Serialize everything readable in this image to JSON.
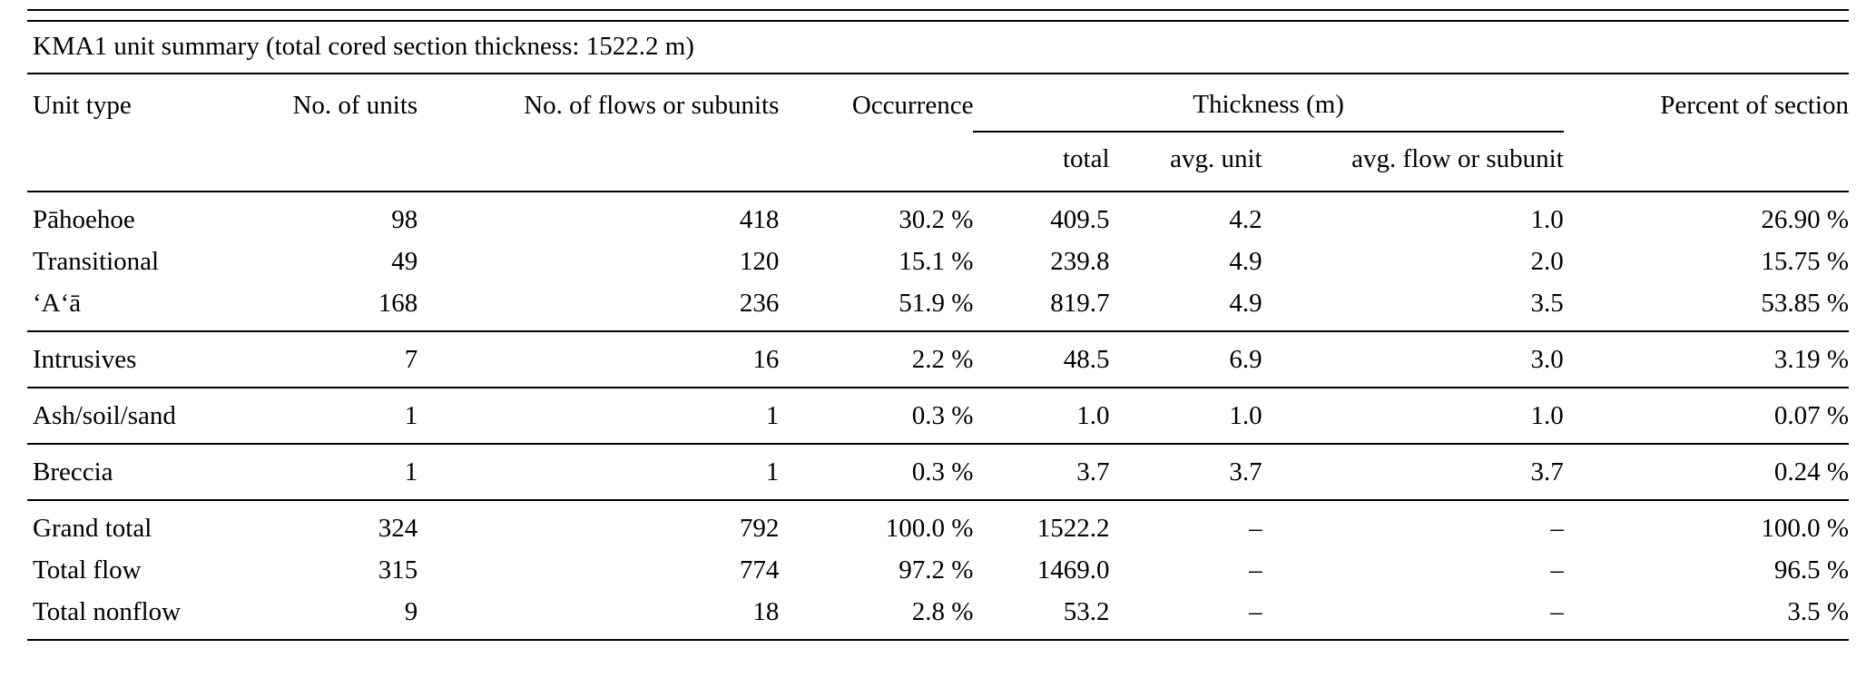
{
  "title": "KMA1 unit summary (total cored section thickness: 1522.2 m)",
  "table": {
    "columns": {
      "unit_type": "Unit type",
      "no_units": "No. of units",
      "no_flows": "No. of flows or subunits",
      "occurrence": "Occurrence",
      "thickness": "Thickness (m)",
      "percent": "Percent of section"
    },
    "thickness_subcolumns": {
      "total": "total",
      "avg_unit": "avg. unit",
      "avg_flow": "avg. flow or subunit"
    },
    "groups": [
      [
        [
          "Pāhoehoe",
          "98",
          "418",
          "30.2 %",
          "409.5",
          "4.2",
          "1.0",
          "26.90 %"
        ],
        [
          "Transitional",
          "49",
          "120",
          "15.1 %",
          "239.8",
          "4.9",
          "2.0",
          "15.75 %"
        ],
        [
          "ʻAʻā",
          "168",
          "236",
          "51.9 %",
          "819.7",
          "4.9",
          "3.5",
          "53.85 %"
        ]
      ],
      [
        [
          "Intrusives",
          "7",
          "16",
          "2.2 %",
          "48.5",
          "6.9",
          "3.0",
          "3.19 %"
        ]
      ],
      [
        [
          "Ash/soil/sand",
          "1",
          "1",
          "0.3 %",
          "1.0",
          "1.0",
          "1.0",
          "0.07 %"
        ]
      ],
      [
        [
          "Breccia",
          "1",
          "1",
          "0.3 %",
          "3.7",
          "3.7",
          "3.7",
          "0.24 %"
        ]
      ],
      [
        [
          "Grand total",
          "324",
          "792",
          "100.0 %",
          "1522.2",
          "–",
          "–",
          "100.0 %"
        ],
        [
          "Total flow",
          "315",
          "774",
          "97.2 %",
          "1469.0",
          "–",
          "–",
          "96.5 %"
        ],
        [
          "Total nonflow",
          "9",
          "18",
          "2.8 %",
          "53.2",
          "–",
          "–",
          "3.5 %"
        ]
      ]
    ]
  }
}
